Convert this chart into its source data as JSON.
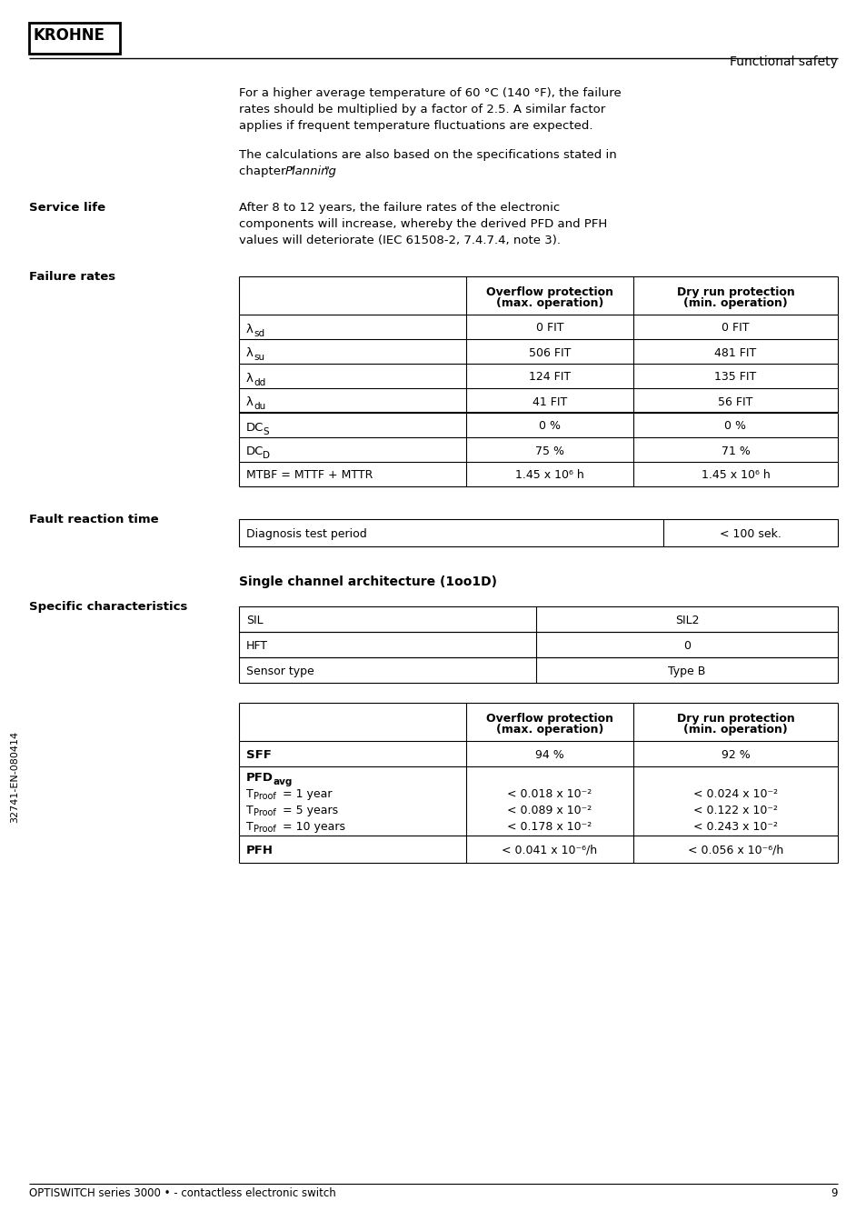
{
  "page_bg": "#ffffff",
  "krohne_text": "KROHNE",
  "header_right_text": "Functional safety",
  "para1_lines": [
    "For a higher average temperature of 60 °C (140 °F), the failure",
    "rates should be multiplied by a factor of 2.5. A similar factor",
    "applies if frequent temperature fluctuations are expected."
  ],
  "para2_line1": "The calculations are also based on the specifications stated in",
  "para2_line2_pre": "chapter \"",
  "para2_line2_italic": "Planning",
  "para2_line2_post": "\".",
  "service_life_label": "Service life",
  "service_life_lines": [
    "After 8 to 12 years, the failure rates of the electronic",
    "components will increase, whereby the derived PFD and PFH",
    "values will deteriorate (IEC 61508-2, 7.4.7.4, note 3)."
  ],
  "failure_rates_label": "Failure rates",
  "fault_reaction_label": "Fault reaction time",
  "single_channel_title": "Single channel architecture (1oo1D)",
  "specific_char_label": "Specific characteristics",
  "sidebar_text": "32741-EN-080414",
  "footer_text": "OPTISWITCH series 3000 • - contactless electronic switch",
  "footer_page": "9"
}
